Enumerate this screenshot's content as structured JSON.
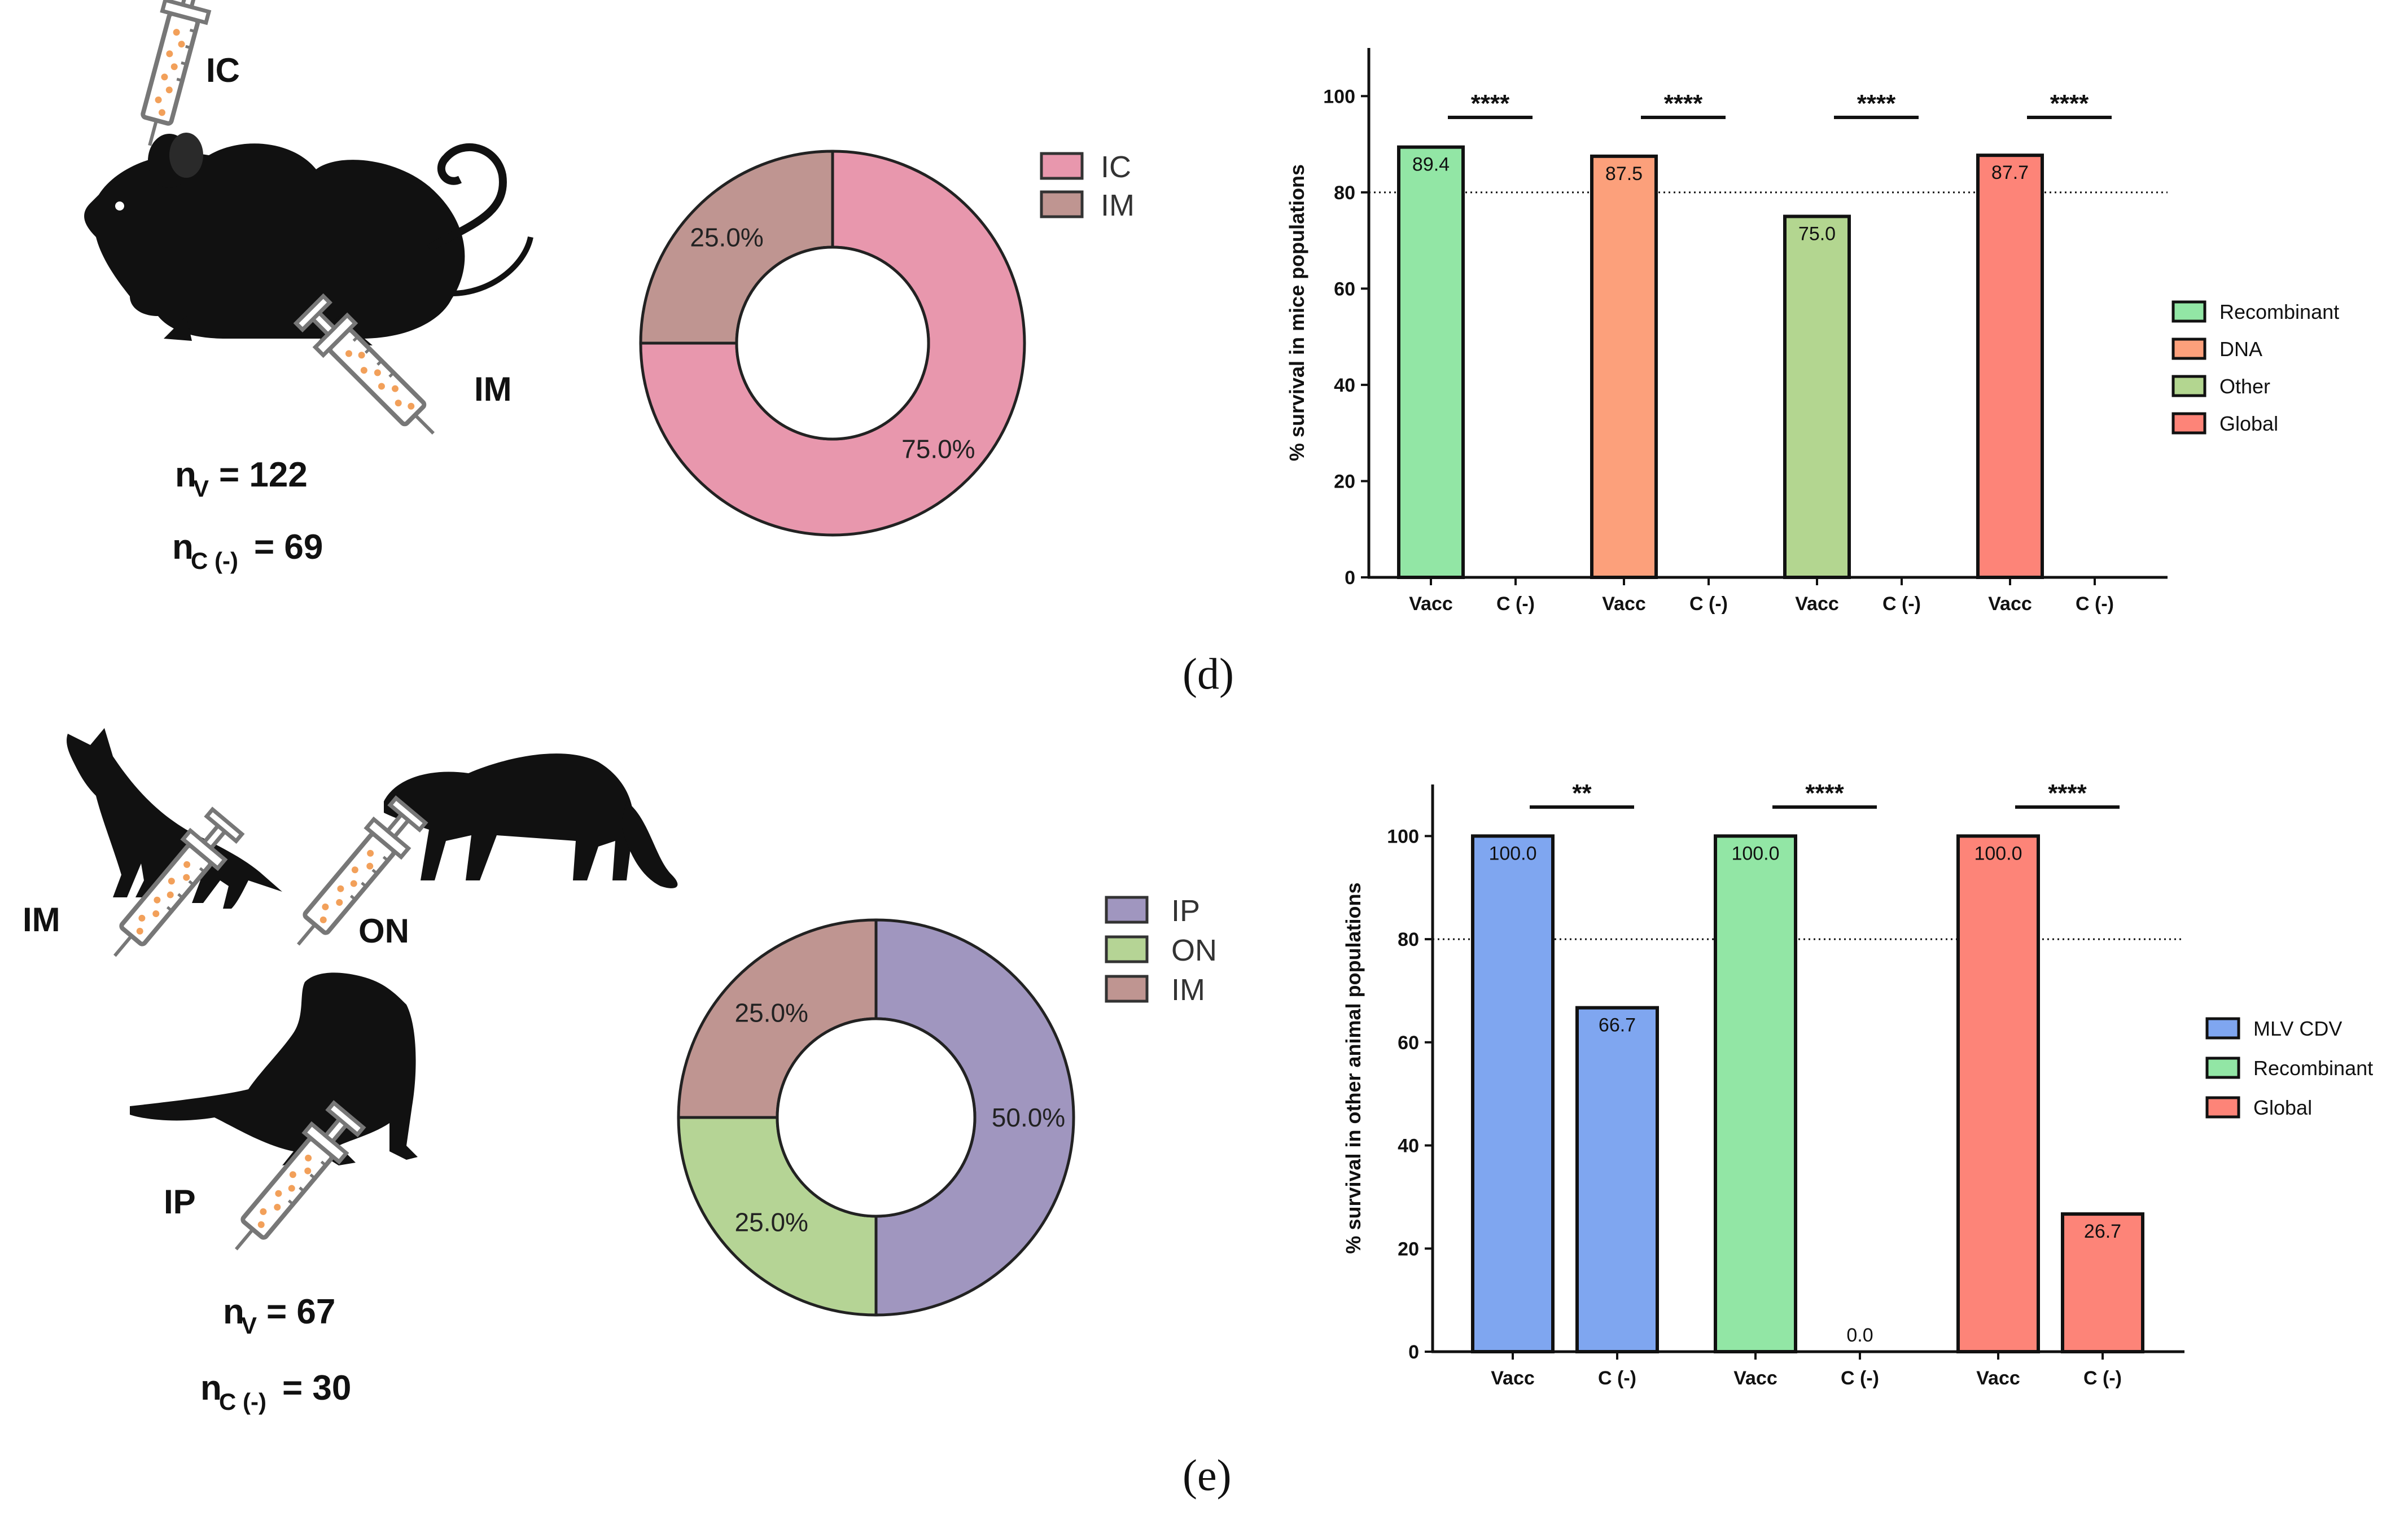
{
  "colors": {
    "ic": "#e897ad",
    "im": "#bf9591",
    "ip": "#a096bf",
    "on": "#b5d495",
    "recombinant": "#92e6a5",
    "dna": "#fca07b",
    "other": "#b3d690",
    "global": "#fd8478",
    "mlv": "#7fa6f0"
  },
  "panel_d": {
    "label": "(d)",
    "illustration": {
      "site_labels": [
        "IC",
        "IM"
      ],
      "n_vacc": "n",
      "n_vacc_sub": "V",
      "n_vacc_val": "= 122",
      "n_ctrl": "n",
      "n_ctrl_sub": "C (-)",
      "n_ctrl_val": "= 69"
    },
    "donut": {
      "legend": [
        {
          "label": "IC",
          "color": "#e897ad"
        },
        {
          "label": "IM",
          "color": "#bf9591"
        }
      ],
      "slices": [
        {
          "label": "IC",
          "value": 75.0,
          "text": "75.0%",
          "color": "#e897ad"
        },
        {
          "label": "IM",
          "value": 25.0,
          "text": "25.0%",
          "color": "#bf9591"
        }
      ]
    }
  },
  "panel_e": {
    "label": "(e)",
    "illustration": {
      "site_labels": [
        "IM",
        "ON",
        "IP"
      ],
      "n_vacc": "n",
      "n_vacc_sub": "V",
      "n_vacc_val": "= 67",
      "n_ctrl": "n",
      "n_ctrl_sub": "C (-)",
      "n_ctrl_val": "= 30"
    },
    "donut": {
      "legend": [
        {
          "label": "IP",
          "color": "#a096bf"
        },
        {
          "label": "ON",
          "color": "#b5d495"
        },
        {
          "label": "IM",
          "color": "#bf9591"
        }
      ],
      "slices": [
        {
          "label": "IP",
          "value": 50.0,
          "text": "50.0%",
          "color": "#a096bf"
        },
        {
          "label": "ON",
          "value": 25.0,
          "text": "25.0%",
          "color": "#b5d495"
        },
        {
          "label": "IM",
          "value": 25.0,
          "text": "25.0%",
          "color": "#bf9591"
        }
      ]
    }
  },
  "chart_data": [
    {
      "type": "bar",
      "id": "mice",
      "ylabel": "% survival in mice populations",
      "ylim": [
        0,
        110
      ],
      "yticks": [
        0,
        20,
        40,
        60,
        80,
        100
      ],
      "reference_line": 80,
      "tick_labels": [
        "Vacc",
        "C (-)",
        "Vacc",
        "C (-)",
        "Vacc",
        "C (-)",
        "Vacc",
        "C (-)"
      ],
      "groups": [
        {
          "name": "Recombinant",
          "color": "#92e6a5",
          "vacc": 89.4,
          "vacc_label": "89.4",
          "ctrl": 0,
          "ctrl_label": "",
          "sig": "****"
        },
        {
          "name": "DNA",
          "color": "#fca07b",
          "vacc": 87.5,
          "vacc_label": "87.5",
          "ctrl": 0,
          "ctrl_label": "",
          "sig": "****"
        },
        {
          "name": "Other",
          "color": "#b3d690",
          "vacc": 75.0,
          "vacc_label": "75.0",
          "ctrl": 0,
          "ctrl_label": "",
          "sig": "****"
        },
        {
          "name": "Global",
          "color": "#fd8478",
          "vacc": 87.7,
          "vacc_label": "87.7",
          "ctrl": 0,
          "ctrl_label": "",
          "sig": "****"
        }
      ],
      "legend": [
        "Recombinant",
        "DNA",
        "Other",
        "Global"
      ]
    },
    {
      "type": "bar",
      "id": "other",
      "ylabel": "% survival in other animal populations",
      "ylim": [
        0,
        110
      ],
      "yticks": [
        0,
        20,
        40,
        60,
        80,
        100
      ],
      "reference_line": 80,
      "tick_labels": [
        "Vacc",
        "C (-)",
        "Vacc",
        "C (-)",
        "Vacc",
        "C (-)"
      ],
      "groups": [
        {
          "name": "MLV CDV",
          "color": "#7fa6f0",
          "vacc": 100.0,
          "vacc_label": "100.0",
          "ctrl": 66.7,
          "ctrl_label": "66.7",
          "sig": "**"
        },
        {
          "name": "Recombinant",
          "color": "#92e6a5",
          "vacc": 100.0,
          "vacc_label": "100.0",
          "ctrl": 0.0,
          "ctrl_label": "0.0",
          "sig": "****"
        },
        {
          "name": "Global",
          "color": "#fd8478",
          "vacc": 100.0,
          "vacc_label": "100.0",
          "ctrl": 26.7,
          "ctrl_label": "26.7",
          "sig": "****"
        }
      ],
      "legend": [
        "MLV CDV",
        "Recombinant",
        "Global"
      ]
    }
  ]
}
